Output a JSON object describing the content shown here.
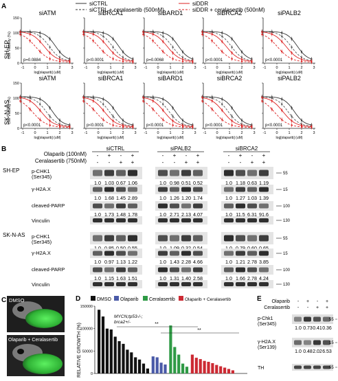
{
  "panels": {
    "a": "A",
    "b": "B",
    "c": "C",
    "d": "D",
    "e": "E"
  },
  "legend_a": {
    "left": [
      "siCTRL",
      "siCTRL + ceralasertib (500nM)"
    ],
    "right": [
      "siDDR",
      "siDDR + ceralasertib (500nM)"
    ]
  },
  "panel_a": {
    "xlabel": "log[olaparib] (uM)",
    "ylabel": "Cell Viability (%)",
    "cols": [
      "siATM",
      "siBRCA1",
      "siBARD1",
      "siBRCA2",
      "siPALB2"
    ],
    "rows": [
      {
        "name": "SH-EP",
        "pvals": [
          "p=0.0884",
          "p<0.0001",
          "p=0.0068",
          "p<0.0001",
          "p<0.0001"
        ]
      },
      {
        "name": "SK-N-AS",
        "pvals": [
          "p<0.0001",
          "p<0.0001",
          "p<0.0001",
          "p<0.0001",
          "p<0.0001"
        ]
      }
    ],
    "yticks": [
      "150",
      "100",
      "50",
      "0"
    ],
    "xticks": [
      "-1",
      "0",
      "1",
      "2",
      "3"
    ]
  },
  "panel_b": {
    "treat_labels": [
      "Olaparib (100nM)",
      "Ceralasertib (750nM)"
    ],
    "groups": [
      "siCTRL",
      "siPALB2",
      "siBRCA2"
    ],
    "olaparib_signs": [
      "-",
      "+",
      "-",
      "+"
    ],
    "ceralasertib_signs": [
      "-",
      "-",
      "+",
      "+"
    ],
    "cell_lines": [
      {
        "name": "SH-EP",
        "markers": [
          {
            "label": "p-CHK1\n(Ser345)",
            "label1": "p-CHK1",
            "label2": "(Ser345)",
            "values": [
              [
                "1.0",
                "1.03",
                "0.67",
                "1.06"
              ],
              [
                "1.0",
                "0.98",
                "0.51",
                "0.52"
              ],
              [
                "1.0",
                "1.18",
                "0.63",
                "1.19"
              ]
            ]
          },
          {
            "label1": "γ-H2A.X",
            "label2": "",
            "values": [
              [
                "1.0",
                "1.68",
                "1.45",
                "2.89"
              ],
              [
                "1.0",
                "1.26",
                "1.20",
                "1.74"
              ],
              [
                "1.0",
                "1.27",
                "1.03",
                "1.39"
              ]
            ]
          },
          {
            "label1": "cleaved-PARP",
            "label2": "",
            "values": [
              [
                "1.0",
                "1.73",
                "1.48",
                "1.78"
              ],
              [
                "1.0",
                "2.71",
                "2.13",
                "4.07"
              ],
              [
                "1.0",
                "11.5",
                "6.31",
                "91.6"
              ]
            ]
          },
          {
            "label1": "Vinculin",
            "label2": "",
            "values": null
          }
        ]
      },
      {
        "name": "SK-N-AS",
        "markers": [
          {
            "label1": "p-CHK1",
            "label2": "(Ser345)",
            "values": [
              [
                "1.0",
                "0.85",
                "0.50",
                "0.55"
              ],
              [
                "1.0",
                "1.09",
                "0.32",
                "0.54"
              ],
              [
                "1.0",
                "0.79",
                "0.60",
                "0.65"
              ]
            ]
          },
          {
            "label1": "γ-H2A.X",
            "label2": "",
            "values": [
              [
                "1.0",
                "0.97",
                "1.13",
                "1.22"
              ],
              [
                "1.0",
                "1.43",
                "2.28",
                "4.66"
              ],
              [
                "1.0",
                "1.21",
                "2.78",
                "3.85"
              ]
            ]
          },
          {
            "label1": "cleaved-PARP",
            "label2": "",
            "values": [
              [
                "1.0",
                "1.15",
                "1.63",
                "1.51"
              ],
              [
                "1.0",
                "1.31",
                "1.40",
                "2.58"
              ],
              [
                "1.0",
                "1.66",
                "2.78",
                "4.24"
              ]
            ]
          },
          {
            "label1": "Vinculin",
            "label2": "",
            "values": null
          }
        ]
      }
    ],
    "mw_sets": [
      [
        "55",
        "15",
        "100",
        "130"
      ],
      [
        "55",
        "15",
        "100",
        "130"
      ]
    ]
  },
  "panel_c": {
    "top_label": "DMSO",
    "bottom_label": "Olaparib + Ceralasertib"
  },
  "panel_d": {
    "ylabel": "RELATIVE GROWTH (%)",
    "legend": [
      {
        "name": "DMSO",
        "color": "#111111"
      },
      {
        "name": "Olaparib",
        "color": "#4a5aa8"
      },
      {
        "name": "Ceralasertib",
        "color": "#2e9a45"
      },
      {
        "name": "Olaparib + Ceralasertib",
        "color": "#cc2a33"
      }
    ],
    "annotation_line1": "MYCN;tp53-/-;",
    "annotation_line2": "brca2+/-",
    "sig1": "**",
    "sig2": "**",
    "yticks": [
      "150000",
      "100000",
      "50000",
      "0"
    ]
  },
  "chart_data": {
    "type": "bar",
    "ylabel": "RELATIVE GROWTH (%)",
    "ylim": [
      0,
      150000
    ],
    "series": [
      {
        "name": "DMSO",
        "values": [
          142000,
          127000,
          100000,
          98000,
          82000,
          72000,
          66000,
          53000,
          47000,
          36000,
          31000,
          22000,
          11000
        ]
      },
      {
        "name": "Olaparib",
        "values": [
          38000,
          36000,
          24000,
          20000
        ]
      },
      {
        "name": "Ceralasertib",
        "values": [
          107000,
          59000,
          42000,
          22000,
          15000
        ]
      },
      {
        "name": "Olaparib + Ceralasertib",
        "values": [
          42000,
          35000,
          32000,
          28000,
          26000,
          23000,
          19000,
          16000,
          13000,
          10000,
          7000
        ]
      }
    ]
  },
  "panel_e": {
    "treat_labels": [
      "Olaparib",
      "Ceralasertib"
    ],
    "olaparib_signs": [
      "-",
      "+",
      "-",
      "+"
    ],
    "ceralasertib_signs": [
      "-",
      "-",
      "+",
      "+"
    ],
    "markers": [
      {
        "label1": "p-Chk1",
        "label2": "(Ser345)",
        "values": [
          "1.0",
          "0.73",
          "0.41",
          "0.36"
        ],
        "mw": "55"
      },
      {
        "label1": "γ-H2A.X",
        "label2": "(Ser139)",
        "values": [
          "1.0",
          "0.48",
          "2.02",
          "6.53"
        ],
        "mw": "15"
      },
      {
        "label1": "TH",
        "label2": "",
        "values": null,
        "mw": "55"
      }
    ]
  }
}
